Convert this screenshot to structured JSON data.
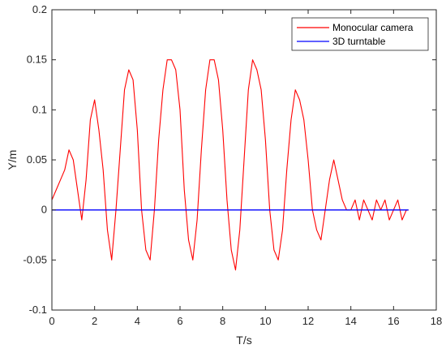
{
  "chart_data": {
    "type": "line",
    "xlabel": "T/s",
    "ylabel": "Y/m",
    "xlim": [
      0,
      18
    ],
    "ylim": [
      -0.1,
      0.2
    ],
    "x_ticks": [
      0,
      2,
      4,
      6,
      8,
      10,
      12,
      14,
      16,
      18
    ],
    "y_ticks": [
      -0.1,
      -0.05,
      0,
      0.05,
      0.1,
      0.15,
      0.2
    ],
    "x_tick_labels": [
      "0",
      "2",
      "4",
      "6",
      "8",
      "10",
      "12",
      "14",
      "16",
      "18"
    ],
    "y_tick_labels": [
      "-0.1",
      "-0.05",
      "0",
      "0.05",
      "0.1",
      "0.15",
      "0.2"
    ],
    "grid": false,
    "legend_position": "top-right",
    "series": [
      {
        "name": "Monocular camera",
        "color": "#ff0000",
        "x": [
          0.0,
          0.2,
          0.4,
          0.6,
          0.8,
          1.0,
          1.2,
          1.4,
          1.6,
          1.8,
          2.0,
          2.2,
          2.4,
          2.6,
          2.8,
          3.0,
          3.2,
          3.4,
          3.6,
          3.8,
          4.0,
          4.2,
          4.4,
          4.6,
          4.8,
          5.0,
          5.2,
          5.4,
          5.6,
          5.8,
          6.0,
          6.2,
          6.4,
          6.6,
          6.8,
          7.0,
          7.2,
          7.4,
          7.6,
          7.8,
          8.0,
          8.2,
          8.4,
          8.6,
          8.8,
          9.0,
          9.2,
          9.4,
          9.6,
          9.8,
          10.0,
          10.2,
          10.4,
          10.6,
          10.8,
          11.0,
          11.2,
          11.4,
          11.6,
          11.8,
          12.0,
          12.2,
          12.4,
          12.6,
          12.8,
          13.0,
          13.2,
          13.4,
          13.6,
          13.8,
          14.0,
          14.2,
          14.4,
          14.6,
          14.8,
          15.0,
          15.2,
          15.4,
          15.6,
          15.8,
          16.0,
          16.2,
          16.4,
          16.6,
          16.7
        ],
        "y": [
          0.01,
          0.02,
          0.03,
          0.04,
          0.06,
          0.05,
          0.02,
          -0.01,
          0.03,
          0.09,
          0.11,
          0.08,
          0.04,
          -0.02,
          -0.05,
          0.0,
          0.06,
          0.12,
          0.14,
          0.13,
          0.08,
          0.0,
          -0.04,
          -0.05,
          0.0,
          0.07,
          0.12,
          0.15,
          0.15,
          0.14,
          0.1,
          0.02,
          -0.03,
          -0.05,
          -0.01,
          0.06,
          0.12,
          0.15,
          0.15,
          0.13,
          0.08,
          0.01,
          -0.04,
          -0.06,
          -0.02,
          0.05,
          0.12,
          0.15,
          0.14,
          0.12,
          0.07,
          0.0,
          -0.04,
          -0.05,
          -0.02,
          0.04,
          0.09,
          0.12,
          0.11,
          0.09,
          0.05,
          0.0,
          -0.02,
          -0.03,
          0.0,
          0.03,
          0.05,
          0.03,
          0.01,
          0.0,
          0.0,
          0.01,
          -0.01,
          0.01,
          0.0,
          -0.01,
          0.01,
          0.0,
          0.01,
          -0.01,
          0.0,
          0.01,
          -0.01,
          0.0,
          0.0
        ]
      },
      {
        "name": "3D turntable",
        "color": "#0000ff",
        "x": [
          0,
          16.7
        ],
        "y": [
          0,
          0
        ]
      }
    ]
  }
}
